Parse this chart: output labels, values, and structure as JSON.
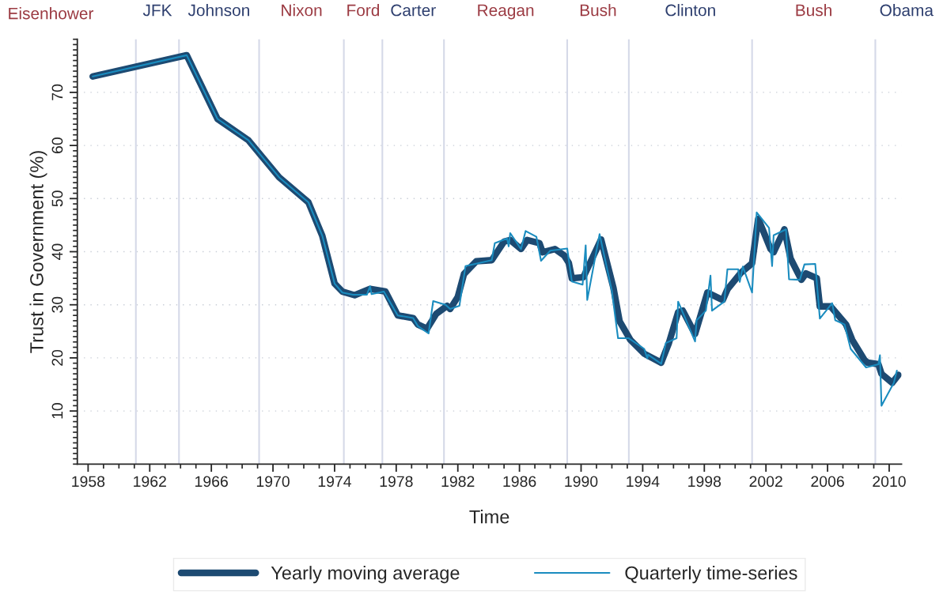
{
  "chart_data": {
    "type": "line",
    "xlabel": "Time",
    "ylabel": "Trust in Government (%)",
    "xlim": [
      1957.3,
      2010.8
    ],
    "ylim": [
      0,
      80
    ],
    "xticks": [
      1958,
      1962,
      1966,
      1970,
      1974,
      1978,
      1982,
      1986,
      1990,
      1994,
      1998,
      2002,
      2006,
      2010
    ],
    "yticks": [
      10,
      20,
      30,
      40,
      50,
      60,
      70
    ],
    "grid": "y",
    "legend": "bottom",
    "marker": "none",
    "line_style": "solid",
    "series": [
      {
        "name": "Yearly moving average",
        "color": "#1d4a72",
        "x": [
          1958.3,
          1964.4,
          1966.4,
          1968.4,
          1970.4,
          1972.3,
          1973.2,
          1974.0,
          1974.5,
          1975.3,
          1976.3,
          1977.3,
          1978.1,
          1979.1,
          1979.4,
          1980.0,
          1980.6,
          1981.3,
          1981.5,
          1982.0,
          1982.4,
          1983.2,
          1984.2,
          1985.0,
          1985.4,
          1986.1,
          1986.5,
          1987.3,
          1987.5,
          1988.3,
          1988.9,
          1989.2,
          1989.4,
          1990.15,
          1991.3,
          1992.1,
          1992.5,
          1993.2,
          1994.1,
          1995.2,
          1995.7,
          1996.3,
          1996.6,
          1997.4,
          1998.2,
          1999.2,
          1999.5,
          2000.4,
          2001.1,
          2001.5,
          2002.3,
          2002.5,
          2003.2,
          2003.6,
          2004.3,
          2004.6,
          2005.3,
          2005.5,
          2006.2,
          2007.2,
          2007.6,
          2008.4,
          2008.6,
          2009.3,
          2009.5,
          2010.2,
          2010.6
        ],
        "values": [
          73,
          77,
          65,
          61,
          54,
          49.3,
          43,
          34,
          32.5,
          31.8,
          33,
          32.5,
          28,
          27.5,
          26.3,
          25.5,
          28.3,
          29.8,
          29.2,
          31.5,
          35.8,
          38.2,
          38.4,
          41.9,
          42.2,
          40.5,
          42.2,
          41.6,
          39.9,
          40.5,
          39.3,
          37.9,
          35,
          35.2,
          42.3,
          33.2,
          26.9,
          23.4,
          20.8,
          19.1,
          22.8,
          28.6,
          28.9,
          24.5,
          32.3,
          30.9,
          32.9,
          36.1,
          37.8,
          46.2,
          40.5,
          39.9,
          44.2,
          38.7,
          34.7,
          35.9,
          35,
          29.7,
          29.7,
          26.3,
          23.4,
          19.6,
          19.1,
          18.8,
          17,
          15.3,
          16.8
        ]
      },
      {
        "name": "Quarterly time-series",
        "color": "#1a8cbf",
        "x": [
          1958.3,
          1964.4,
          1966.4,
          1968.4,
          1970.4,
          1972.3,
          1973.2,
          1974.0,
          1974.5,
          1975.2,
          1976.1,
          1976.3,
          1976.4,
          1977.2,
          1978.1,
          1979.1,
          1979.4,
          1980.1,
          1980.4,
          1981.2,
          1981.5,
          1982.1,
          1982.5,
          1984.2,
          1984.4,
          1985.2,
          1985.3,
          1985.4,
          1986.1,
          1986.4,
          1987.1,
          1987.4,
          1988.0,
          1989.1,
          1989.4,
          1990.1,
          1990.3,
          1990.4,
          1991.2,
          1992.0,
          1992.4,
          1993.1,
          1994.1,
          1994.3,
          1994.35,
          1995.2,
          1995.5,
          1996.2,
          1996.3,
          1997.4,
          1997.5,
          1998.1,
          1998.4,
          1998.5,
          1999.3,
          1999.5,
          2000.2,
          2000.3,
          2000.5,
          2001.1,
          2001.4,
          2002.2,
          2002.4,
          2002.5,
          2003.3,
          2003.5,
          2004.2,
          2004.5,
          2005.2,
          2005.5,
          2006.3,
          2006.5,
          2007.1,
          2007.5,
          2008.5,
          2009.3,
          2009.4,
          2009.5,
          2010.3,
          2010.5
        ],
        "values": [
          73,
          77,
          65,
          61,
          54,
          49.3,
          43,
          34,
          32.3,
          31.9,
          31.9,
          33.5,
          32,
          32.5,
          28,
          27.5,
          26,
          24.6,
          30.7,
          30,
          29.2,
          29.8,
          37.3,
          38.4,
          41.6,
          42.5,
          41,
          43.5,
          40.5,
          43.9,
          42.8,
          38.3,
          40.2,
          40.6,
          34.4,
          33.8,
          41.2,
          30.9,
          43.3,
          32.6,
          23.7,
          23.7,
          21.7,
          19.9,
          20.6,
          18.9,
          22.8,
          23.7,
          30.6,
          23.1,
          27.1,
          28.9,
          35.5,
          28.9,
          30.6,
          36.7,
          36.7,
          34.3,
          37.2,
          32.3,
          47.4,
          44.5,
          37.3,
          43.1,
          44.2,
          34.8,
          34.7,
          37.6,
          37.7,
          27.4,
          30.3,
          27.1,
          26.3,
          21.7,
          18.2,
          18.8,
          20.5,
          11,
          15.3,
          17.6
        ]
      }
    ],
    "ref_lines": [
      {
        "axis": "x",
        "value": 1961.1,
        "color": "#d5d9e8"
      },
      {
        "axis": "x",
        "value": 1963.9,
        "color": "#d5d9e8"
      },
      {
        "axis": "x",
        "value": 1969.1,
        "color": "#d5d9e8"
      },
      {
        "axis": "x",
        "value": 1974.6,
        "color": "#d5d9e8"
      },
      {
        "axis": "x",
        "value": 1977.1,
        "color": "#d5d9e8"
      },
      {
        "axis": "x",
        "value": 1981.1,
        "color": "#d5d9e8"
      },
      {
        "axis": "x",
        "value": 1989.1,
        "color": "#d5d9e8"
      },
      {
        "axis": "x",
        "value": 1993.1,
        "color": "#d5d9e8"
      },
      {
        "axis": "x",
        "value": 2001.1,
        "color": "#d5d9e8"
      },
      {
        "axis": "x",
        "value": 2009.1,
        "color": "#d5d9e8"
      }
    ],
    "annotations": [
      "Eisenhower",
      "JFK",
      "Johnson",
      "Nixon",
      "Ford",
      "Carter",
      "Reagan",
      "Bush",
      "Clinton",
      "Bush",
      "Obama"
    ]
  }
}
